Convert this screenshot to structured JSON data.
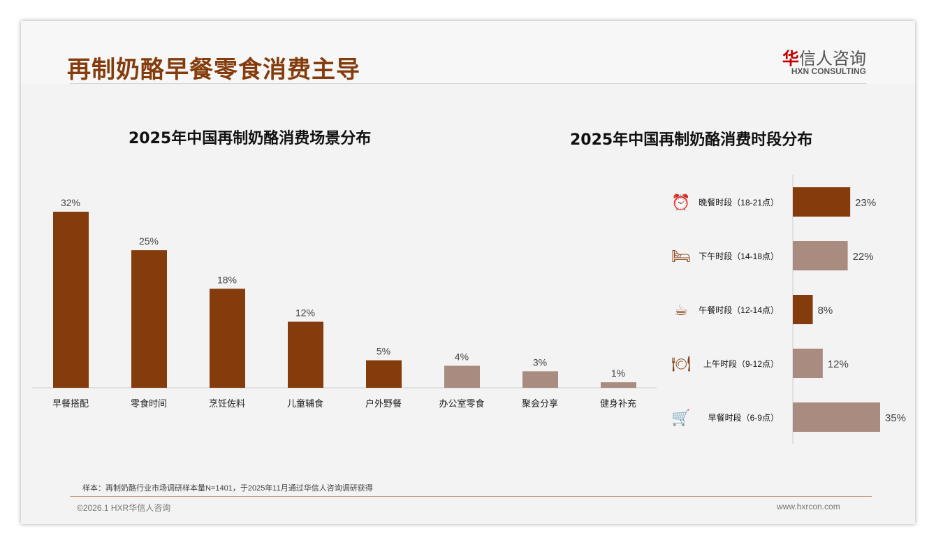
{
  "header": {
    "title": "再制奶酪早餐零食消费主导",
    "logo_cn_mark": "华",
    "logo_cn_rest": "信人咨询",
    "logo_en": "HXN CONSULTING"
  },
  "colors": {
    "dark": "#843c0c",
    "light": "#a98b80"
  },
  "chart_data": [
    {
      "type": "bar",
      "title": "2025年中国再制奶酪消费场景分布",
      "categories": [
        "早餐搭配",
        "零食时间",
        "烹饪佐料",
        "儿童辅食",
        "户外野餐",
        "办公室零食",
        "聚会分享",
        "健身补充"
      ],
      "values": [
        32,
        25,
        18,
        12,
        5,
        4,
        3,
        1
      ],
      "labels": [
        "32%",
        "25%",
        "18%",
        "12%",
        "5%",
        "4%",
        "3%",
        "1%"
      ],
      "highlight": [
        true,
        true,
        true,
        true,
        true,
        false,
        false,
        false
      ],
      "ylim": [
        0,
        32
      ]
    },
    {
      "type": "bar",
      "orientation": "horizontal",
      "title": "2025年中国再制奶酪消费时段分布",
      "categories": [
        "晚餐时段（18-21点）",
        "下午时段（14-18点）",
        "午餐时段（12-14点）",
        "上午时段（9-12点）",
        "早餐时段（6-9点）"
      ],
      "icons": [
        "alarm-clock-icon",
        "bed-icon",
        "coffee-cup-icon",
        "plate-cutlery-icon",
        "shopping-cart-icon"
      ],
      "values": [
        23,
        22,
        8,
        12,
        35
      ],
      "labels": [
        "23%",
        "22%",
        "8%",
        "12%",
        "35%"
      ],
      "highlight": [
        true,
        false,
        true,
        false,
        false
      ],
      "xlim": [
        0,
        35
      ]
    }
  ],
  "footer": {
    "note": "样本：再制奶酪行业市场调研样本量N=1401，于2025年11月通过华信人咨询调研获得",
    "copyright": "©2026.1 HXR华信人咨询",
    "website": "www.hxrcon.com"
  }
}
